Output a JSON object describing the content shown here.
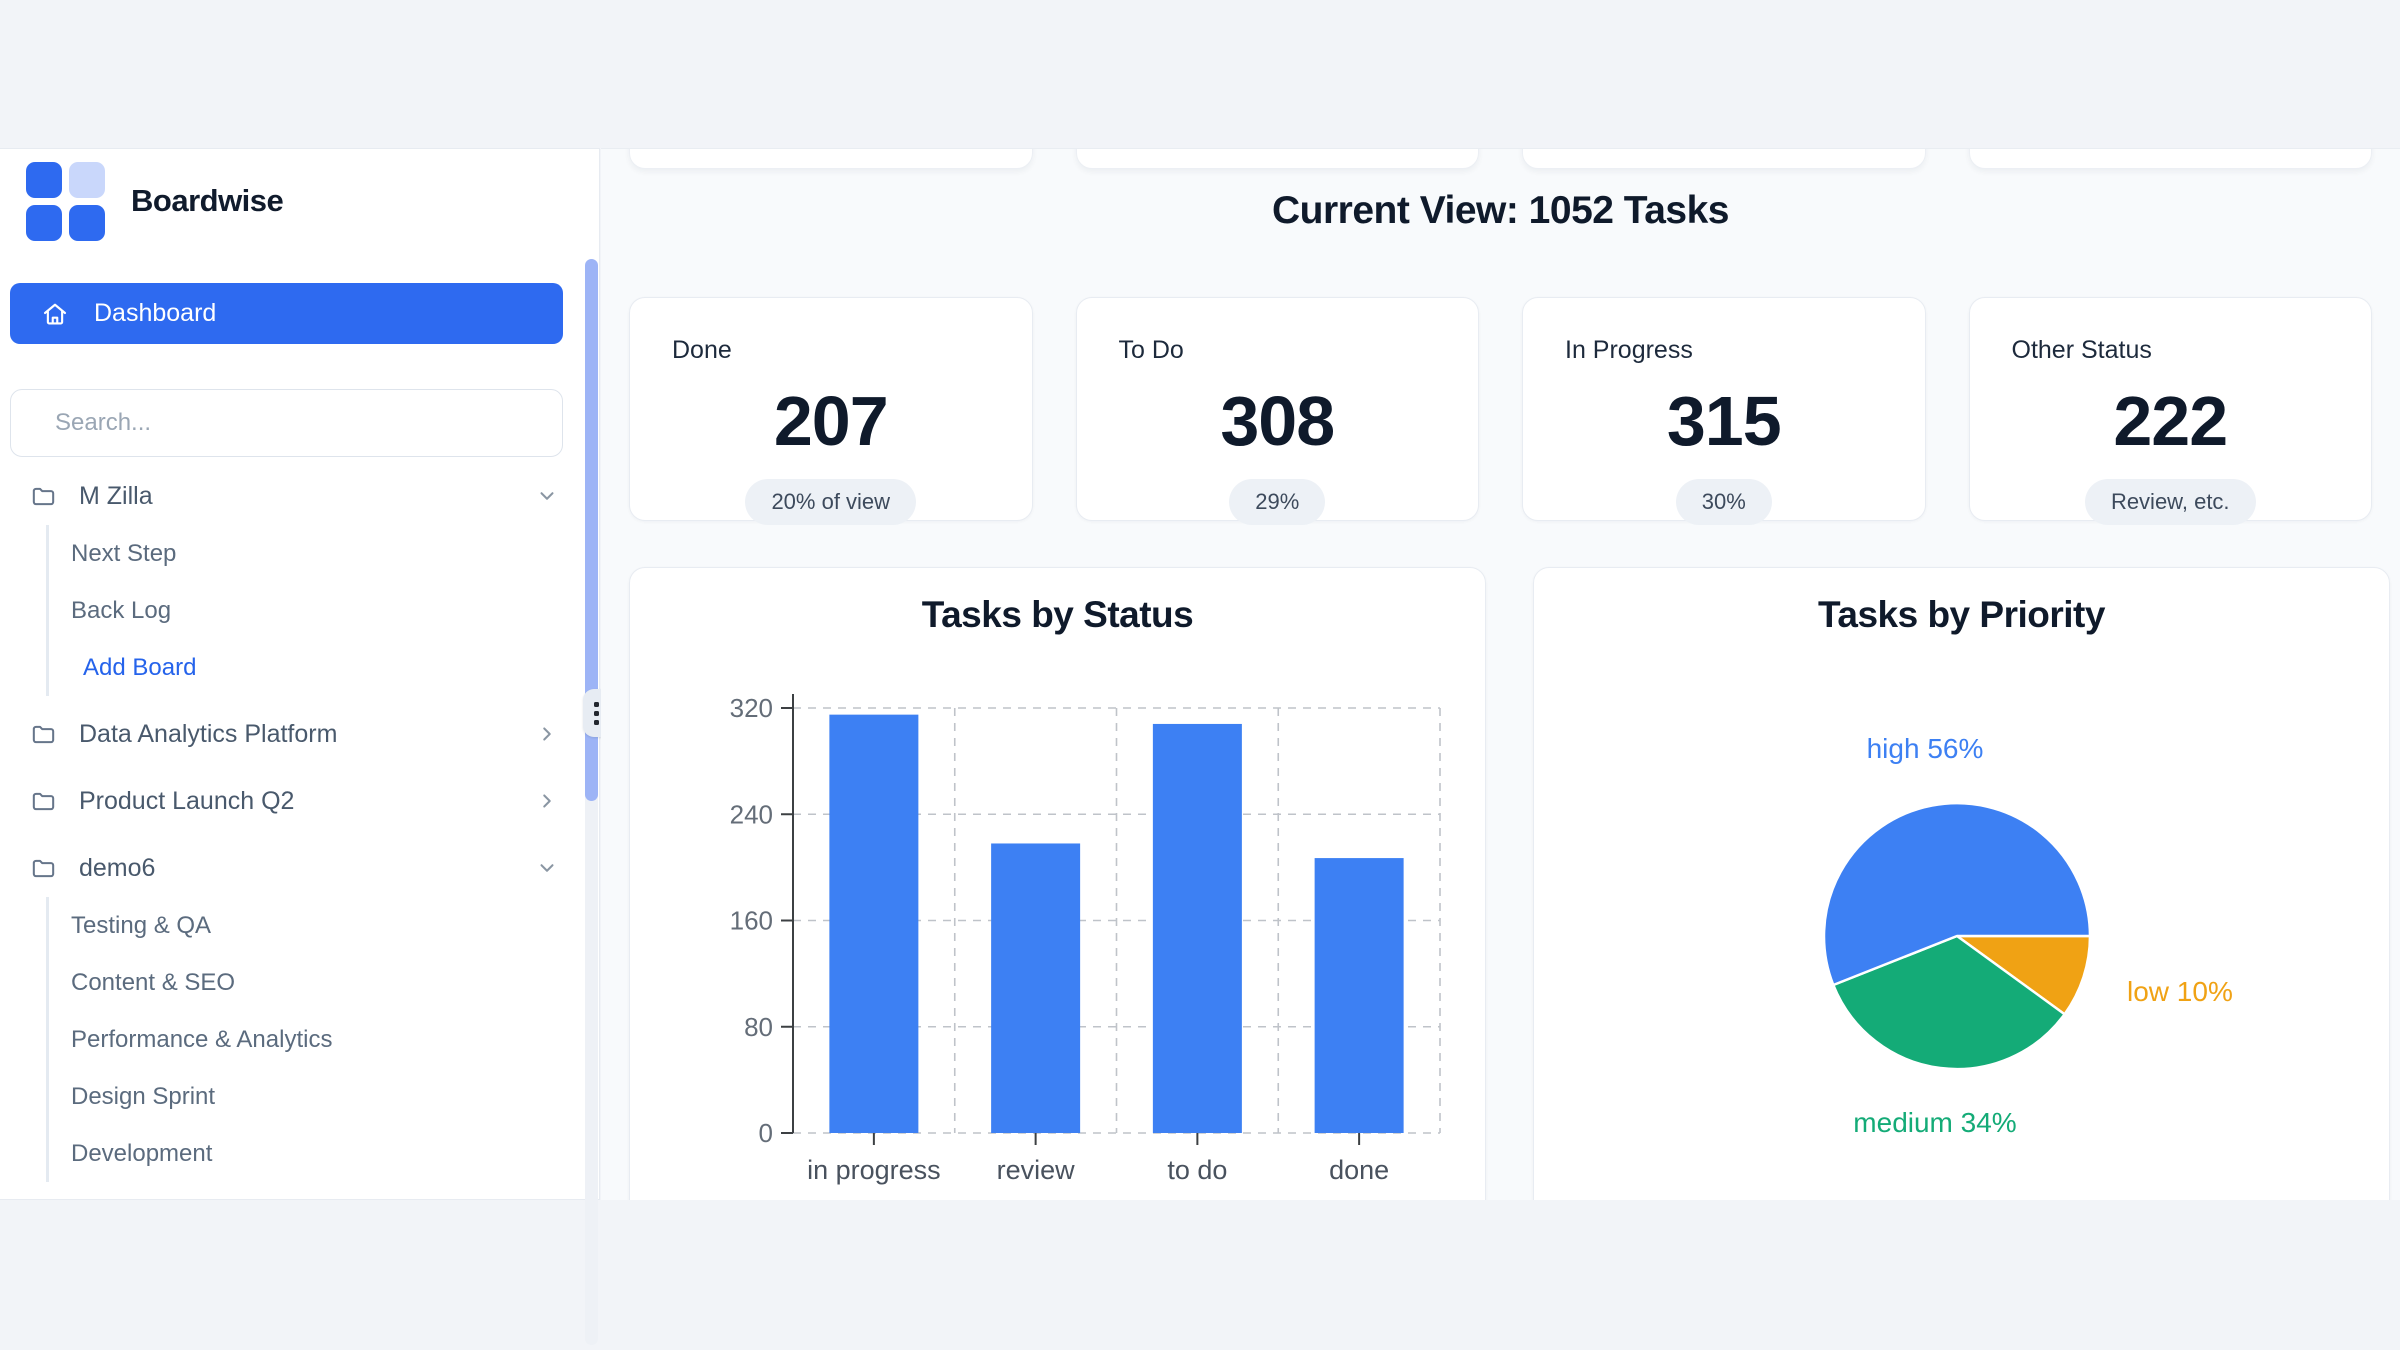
{
  "brand": {
    "name": "Boardwise"
  },
  "sidebar": {
    "dashboard_label": "Dashboard",
    "search_placeholder": "Search...",
    "projects": [
      {
        "label": "M Zilla",
        "state": "expanded",
        "children": [
          "Next Step",
          "Back Log"
        ],
        "action": "Add Board"
      },
      {
        "label": "Data Analytics Platform",
        "state": "collapsed"
      },
      {
        "label": "Product Launch Q2",
        "state": "collapsed"
      },
      {
        "label": "demo6",
        "state": "expanded",
        "children": [
          "Testing & QA",
          "Content & SEO",
          "Performance & Analytics",
          "Design Sprint",
          "Development"
        ]
      }
    ]
  },
  "header": {
    "title": "Current View: 1052 Tasks"
  },
  "stats": [
    {
      "label": "Done",
      "value": "207",
      "badge": "20% of view"
    },
    {
      "label": "To Do",
      "value": "308",
      "badge": "29%"
    },
    {
      "label": "In Progress",
      "value": "315",
      "badge": "30%"
    },
    {
      "label": "Other Status",
      "value": "222",
      "badge": "Review, etc."
    }
  ],
  "chart_data": [
    {
      "type": "bar",
      "title": "Tasks by Status",
      "categories": [
        "in progress",
        "review",
        "to do",
        "done"
      ],
      "values": [
        315,
        218,
        308,
        207
      ],
      "xlabel": "",
      "ylabel": "",
      "ylim": [
        0,
        320
      ],
      "yticks": [
        0,
        80,
        160,
        240,
        320
      ],
      "grid": "dashed",
      "color": "#3d80f3"
    },
    {
      "type": "pie",
      "title": "Tasks by Priority",
      "slices": [
        {
          "label": "low",
          "pct": 10,
          "color": "#f0a214"
        },
        {
          "label": "medium",
          "pct": 34,
          "color": "#14ab77"
        },
        {
          "label": "high",
          "pct": 56,
          "color": "#3d80f3"
        }
      ],
      "start_angle": "east",
      "direction": "clockwise",
      "labels_outside": true
    }
  ],
  "colors": {
    "accent_blue": "#2e6af0",
    "chart_blue": "#3d80f3",
    "chart_green": "#14ab77",
    "chart_orange": "#f0a214",
    "badge_bg": "#edf1f6"
  }
}
